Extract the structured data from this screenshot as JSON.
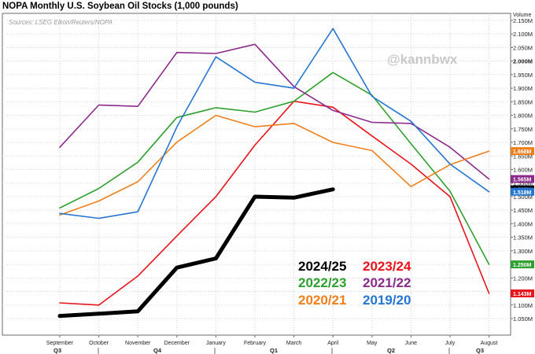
{
  "title": "NOPA Monthly U.S. Soybean Oil Stocks (1,000 pounds)",
  "source": "Sources: LSEG Eikon/Reuters/NOPA",
  "watermark": "@kannbwx",
  "y_axis_header": "Volume",
  "chart_data": {
    "type": "line",
    "title": "NOPA Monthly U.S. Soybean Oil Stocks (1,000 pounds)",
    "x": [
      "September",
      "October",
      "November",
      "December",
      "January",
      "February",
      "March",
      "April",
      "May",
      "June",
      "July",
      "August"
    ],
    "quarters": [
      "Q3",
      "Q4",
      "Q1",
      "Q2",
      "Q3"
    ],
    "y_unit_label": "Volume",
    "ylim": [
      1000,
      2200
    ],
    "y_ticks": [
      "1.050M",
      "1.100M",
      "1.150M",
      "1.200M",
      "1.250M",
      "1.300M",
      "1.350M",
      "1.400M",
      "1.450M",
      "1.500M",
      "1.550M",
      "1.600M",
      "1.650M",
      "1.700M",
      "1.750M",
      "1.800M",
      "1.850M",
      "1.900M",
      "1.950M",
      "2.000M",
      "2.050M",
      "2.100M",
      "2.150M"
    ],
    "grid": true,
    "series": [
      {
        "name": "2024/25",
        "color": "#000000",
        "bold": true,
        "values": [
          1060,
          1068,
          1077,
          1238,
          1272,
          1500,
          1496,
          1527,
          null,
          null,
          null,
          null
        ]
      },
      {
        "name": "2023/24",
        "color": "#e8141b",
        "values": [
          1108,
          1100,
          1207,
          1355,
          1500,
          1690,
          1852,
          1830,
          1724,
          1620,
          1500,
          1143
        ]
      },
      {
        "name": "2022/23",
        "color": "#2ea02e",
        "values": [
          1458,
          1530,
          1627,
          1792,
          1828,
          1812,
          1852,
          1958,
          1874,
          1695,
          1520,
          1250
        ]
      },
      {
        "name": "2021/22",
        "color": "#8b2a8b",
        "values": [
          1682,
          1838,
          1833,
          2032,
          2028,
          2062,
          1906,
          1818,
          1774,
          1770,
          1682,
          1565
        ]
      },
      {
        "name": "2020/21",
        "color": "#f07f1b",
        "values": [
          1432,
          1484,
          1555,
          1701,
          1800,
          1758,
          1770,
          1700,
          1670,
          1537,
          1618,
          1668
        ]
      },
      {
        "name": "2019/20",
        "color": "#2576d2",
        "values": [
          1438,
          1420,
          1444,
          1757,
          2016,
          1922,
          1900,
          2120,
          1870,
          1778,
          1620,
          1518
        ]
      }
    ],
    "end_labels": [
      {
        "text": "1.668M",
        "value": 1668,
        "color": "#f07f1b"
      },
      {
        "text": "1.565M",
        "value": 1565,
        "color": "#8b2a8b"
      },
      {
        "text": "1.527M",
        "value": 1527,
        "color": "#000000"
      },
      {
        "text": "1.518M",
        "value": 1518,
        "color": "#2576d2"
      },
      {
        "text": "1.250M",
        "value": 1250,
        "color": "#2ea02e"
      },
      {
        "text": "1.143M",
        "value": 1143,
        "color": "#e8141b"
      }
    ],
    "legend": [
      {
        "text": "2024/25",
        "color": "#000000"
      },
      {
        "text": "2023/24",
        "color": "#e8141b"
      },
      {
        "text": "2022/23",
        "color": "#2ea02e"
      },
      {
        "text": "2021/22",
        "color": "#8b2a8b"
      },
      {
        "text": "2020/21",
        "color": "#f07f1b"
      },
      {
        "text": "2019/20",
        "color": "#2576d2"
      }
    ],
    "legend_position": "bottom-right inside plot"
  }
}
